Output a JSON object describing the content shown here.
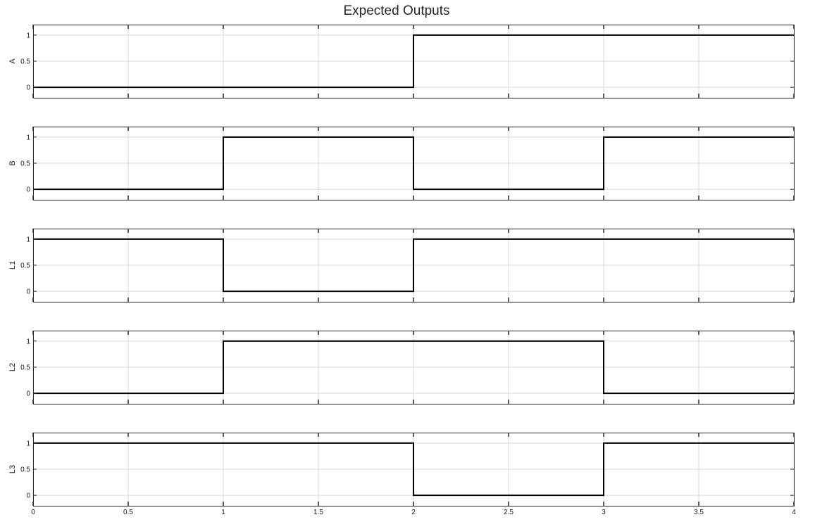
{
  "title": "Expected Outputs",
  "chart_data": {
    "type": "line",
    "step": true,
    "title": "Expected Outputs",
    "xlabel": "",
    "xlim": [
      0,
      4
    ],
    "ylim": [
      -0.2,
      1.2
    ],
    "x_ticks": [
      0,
      0.5,
      1,
      1.5,
      2,
      2.5,
      3,
      3.5,
      4
    ],
    "x_tick_labels": [
      "0",
      "0.5",
      "1",
      "1.5",
      "2",
      "2.5",
      "3",
      "3.5",
      "4"
    ],
    "y_ticks": [
      0,
      0.5,
      1
    ],
    "y_tick_labels": [
      "0",
      "0.5",
      "1"
    ],
    "grid": true,
    "line_color": "#000000",
    "grid_color": "#d9d9d9",
    "series": [
      {
        "name": "A",
        "x": [
          0,
          2,
          2,
          4
        ],
        "y": [
          0,
          0,
          1,
          1
        ]
      },
      {
        "name": "B",
        "x": [
          0,
          1,
          1,
          2,
          2,
          3,
          3,
          4
        ],
        "y": [
          0,
          0,
          1,
          1,
          0,
          0,
          1,
          1
        ]
      },
      {
        "name": "L1",
        "x": [
          0,
          1,
          1,
          2,
          2,
          4
        ],
        "y": [
          1,
          1,
          0,
          0,
          1,
          1
        ]
      },
      {
        "name": "L2",
        "x": [
          0,
          1,
          1,
          3,
          3,
          4
        ],
        "y": [
          0,
          0,
          1,
          1,
          0,
          0
        ]
      },
      {
        "name": "L3",
        "x": [
          0,
          2,
          2,
          3,
          3,
          4
        ],
        "y": [
          1,
          1,
          0,
          0,
          1,
          1
        ]
      }
    ]
  }
}
